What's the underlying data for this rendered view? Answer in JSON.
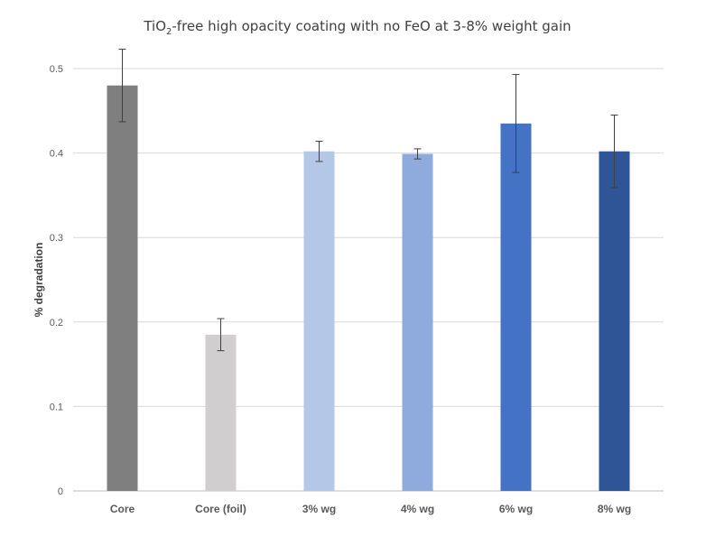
{
  "chart_data": {
    "type": "bar",
    "title": {
      "prefix": "TiO",
      "subscript": "2",
      "suffix": "-free high opacity coating with no FeO at 3-8% weight gain"
    },
    "xlabel": "",
    "ylabel": "% degradation",
    "ylim": [
      0,
      0.5
    ],
    "yticks": [
      "0",
      "0.1",
      "0.2",
      "0.3",
      "0.4",
      "0.5"
    ],
    "grid": true,
    "legend": "none",
    "categories": [
      "Core",
      "Core (foil)",
      "3% wg",
      "4% wg",
      "6% wg",
      "8% wg"
    ],
    "values": [
      0.48,
      0.185,
      0.402,
      0.399,
      0.435,
      0.402
    ],
    "error": [
      0.043,
      0.019,
      0.012,
      0.006,
      0.058,
      0.043
    ],
    "colors": [
      "#7f7f7f",
      "#d0cece",
      "#b4c7e7",
      "#8faadc",
      "#4472c4",
      "#2f5597"
    ]
  }
}
